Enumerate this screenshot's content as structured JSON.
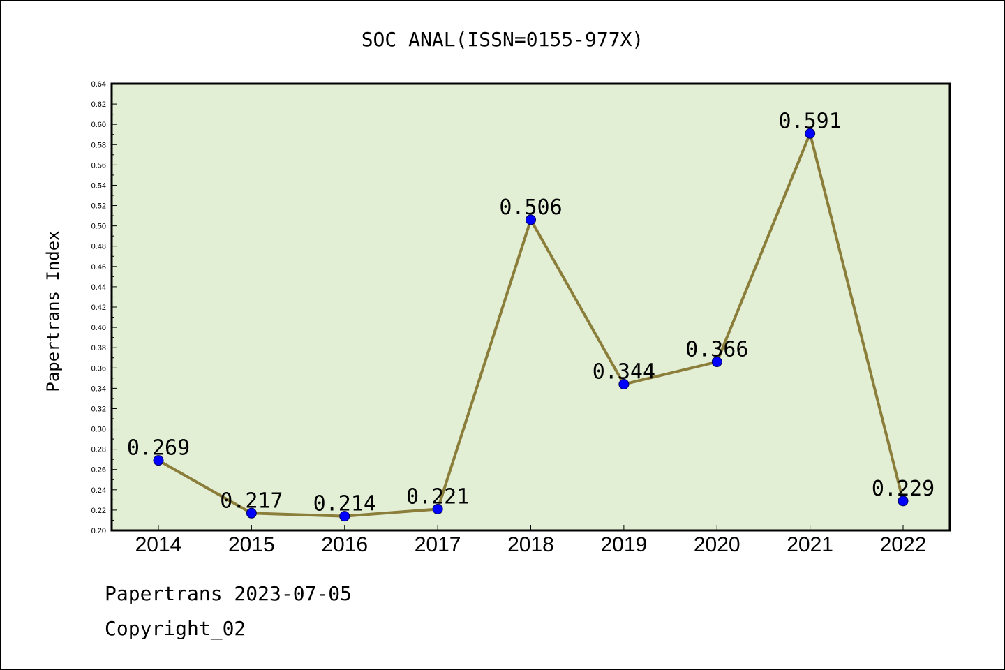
{
  "chart_data": {
    "type": "line",
    "title": "SOC ANAL(ISSN=0155-977X)",
    "ylabel": "Papertrans Index",
    "xlabel": "",
    "categories": [
      "2014",
      "2015",
      "2016",
      "2017",
      "2018",
      "2019",
      "2020",
      "2021",
      "2022"
    ],
    "values": [
      0.269,
      0.217,
      0.214,
      0.221,
      0.506,
      0.344,
      0.366,
      0.591,
      0.229
    ],
    "data_labels": [
      "0.269",
      "0.217",
      "0.214",
      "0.221",
      "0.506",
      "0.344",
      "0.366",
      "0.591",
      "0.229"
    ],
    "ylim": [
      0.2,
      0.64
    ],
    "yticks": [
      "0.20",
      "0.22",
      "0.24",
      "0.26",
      "0.28",
      "0.30",
      "0.32",
      "0.34",
      "0.36",
      "0.38",
      "0.40",
      "0.42",
      "0.44",
      "0.46",
      "0.48",
      "0.50",
      "0.52",
      "0.54",
      "0.56",
      "0.58",
      "0.60",
      "0.62",
      "0.64"
    ],
    "grid": false,
    "colors": {
      "plot_background": "#e2efd5",
      "line": "#8b7d3a",
      "marker": "#0000ff",
      "marker_edge": "#00005a"
    }
  },
  "footer": {
    "line1": "Papertrans 2023-07-05",
    "line2": "Copyright_02"
  }
}
